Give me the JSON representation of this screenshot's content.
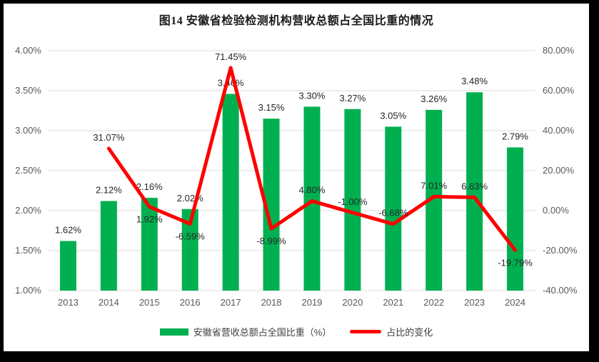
{
  "title": "图14 安徽省检验检测机构营收总额占全国比重的情况",
  "colors": {
    "bar": "#00B050",
    "line": "#FF0000",
    "grid": "#DCDCDC",
    "axis_text": "#595959",
    "label_text": "#262626",
    "frame": "#000000",
    "background": "#FFFFFF"
  },
  "chart_data": {
    "type": "combo: bar + line",
    "title": "图14 安徽省检验检测机构营收总额占全国比重的情况",
    "categories": [
      "2013",
      "2014",
      "2015",
      "2016",
      "2017",
      "2018",
      "2019",
      "2020",
      "2021",
      "2022",
      "2023",
      "2024"
    ],
    "series": [
      {
        "name": "安徽省营收总额占全国比重（%）",
        "type": "bar",
        "axis": "left",
        "color": "#00B050",
        "values": [
          1.62,
          2.12,
          2.16,
          2.02,
          3.46,
          3.15,
          3.3,
          3.27,
          3.05,
          3.26,
          3.48,
          2.79
        ],
        "labels": [
          "1.62%",
          "2.12%",
          "2.16%",
          "2.02%",
          "3.46%",
          "3.15%",
          "3.30%",
          "3.27%",
          "3.05%",
          "3.26%",
          "3.48%",
          "2.79%"
        ]
      },
      {
        "name": "占比的变化",
        "type": "line",
        "axis": "right",
        "color": "#FF0000",
        "values": [
          null,
          31.07,
          1.92,
          -6.59,
          71.45,
          -8.99,
          4.8,
          -1.0,
          -6.68,
          7.01,
          6.63,
          -19.79
        ],
        "labels": [
          "",
          "31.07%",
          "1.92%",
          "-6.59%",
          "71.45%",
          "-8.99%",
          "4.80%",
          "-1.00%",
          "-6.68%",
          "7.01%",
          "6.63%",
          "-19.79%"
        ],
        "label_placement": [
          null,
          "above",
          "below",
          "below",
          "above",
          "below",
          "above",
          "above",
          "above",
          "above",
          "above",
          "below"
        ]
      }
    ],
    "left_axis": {
      "min": 1.0,
      "max": 4.0,
      "step": 0.5,
      "tick_labels": [
        "4.00%",
        "3.50%",
        "3.00%",
        "2.50%",
        "2.00%",
        "1.50%",
        "1.00%"
      ]
    },
    "right_axis": {
      "min": -40,
      "max": 80,
      "step": 20,
      "tick_labels": [
        "80.00%",
        "60.00%",
        "40.00%",
        "20.00%",
        "0.00%",
        "-20.00%",
        "-40.00%"
      ]
    },
    "grid": true,
    "legend_position": "bottom"
  },
  "legend": {
    "items": [
      {
        "label": "安徽省营收总额占全国比重（%）",
        "color": "#00B050",
        "shape": "rect"
      },
      {
        "label": "占比的变化",
        "color": "#FF0000",
        "shape": "line"
      }
    ]
  }
}
